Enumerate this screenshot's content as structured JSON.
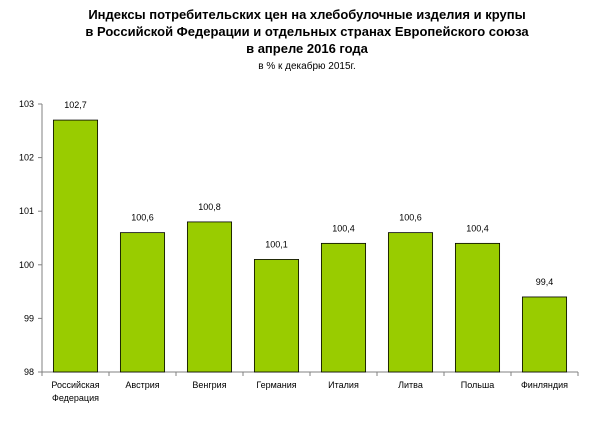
{
  "chart_data": {
    "type": "bar",
    "title_lines": [
      "Индексы потребительских цен на хлебобулочные изделия и крупы",
      "в Российской Федерации и отдельных странах Европейского союза",
      "в апреле 2016 года"
    ],
    "subtitle": "в % к декабрю 2015г.",
    "categories": [
      [
        "Российская",
        "Федерация"
      ],
      [
        "Австрия"
      ],
      [
        "Венгрия"
      ],
      [
        "Германия"
      ],
      [
        "Италия"
      ],
      [
        "Литва"
      ],
      [
        "Польша"
      ],
      [
        "Финляндия"
      ]
    ],
    "values": [
      102.7,
      100.6,
      100.8,
      100.1,
      100.4,
      100.6,
      100.4,
      99.4
    ],
    "value_labels": [
      "102,7",
      "100,6",
      "100,8",
      "100,1",
      "100,4",
      "100,6",
      "100,4",
      "99,4"
    ],
    "y_ticks": [
      98,
      99,
      100,
      101,
      102,
      103
    ],
    "y_tick_labels": [
      "98",
      "99",
      "100",
      "101",
      "102",
      "103"
    ],
    "ylim": [
      98,
      103
    ],
    "xlabel": "",
    "ylabel": "",
    "grid": false,
    "legend": "none",
    "colors": {
      "bar_fill": "#99cc00",
      "bar_stroke": "#000000",
      "axis": "#808080",
      "text": "#000000"
    }
  }
}
